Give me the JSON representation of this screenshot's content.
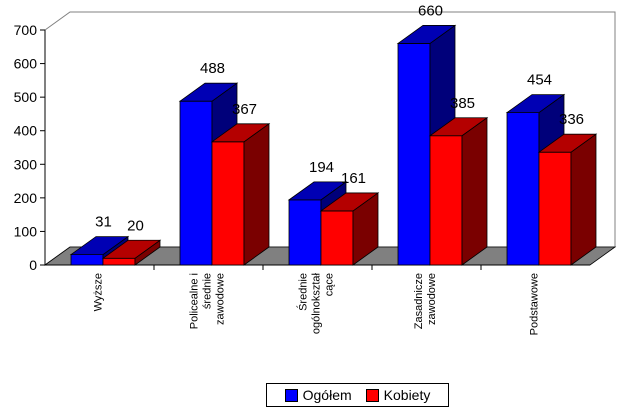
{
  "chart_data": {
    "type": "bar",
    "categories": [
      [
        "Wyższe"
      ],
      [
        "Policealne i",
        "średnie",
        "zawodowe"
      ],
      [
        "Średnie",
        "ogólnokształ",
        "cące"
      ],
      [
        "Zasadnicze",
        "zawodowe"
      ],
      [
        "Podstawowe"
      ]
    ],
    "series": [
      {
        "name": "Ogółem",
        "color": "#0000ff",
        "side_color": "#00007a",
        "top_color": "#0000b4",
        "values": [
          31,
          488,
          194,
          660,
          454
        ]
      },
      {
        "name": "Kobiety",
        "color": "#ff0000",
        "side_color": "#7a0000",
        "top_color": "#b40000",
        "values": [
          20,
          367,
          161,
          385,
          336
        ]
      }
    ],
    "ylim": [
      0,
      700
    ],
    "yticks": [
      0,
      100,
      200,
      300,
      400,
      500,
      600,
      700
    ],
    "grid": false,
    "legend_position": "bottom"
  }
}
